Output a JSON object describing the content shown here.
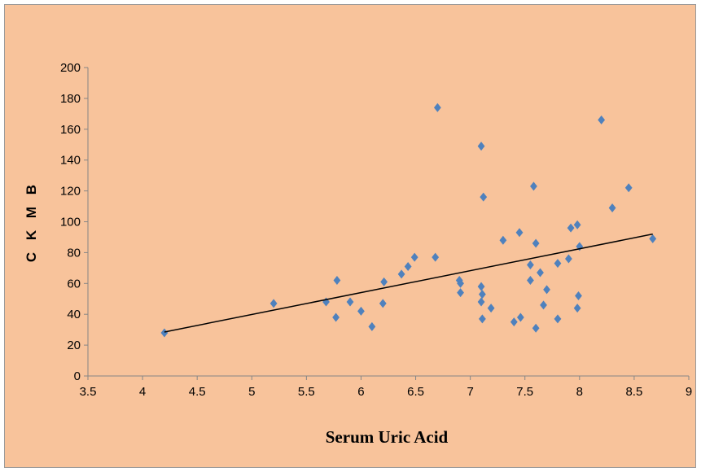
{
  "chart_data": {
    "type": "scatter",
    "title": "",
    "xlabel": "Serum Uric Acid",
    "ylabel": "C K M B",
    "xlim": [
      3.5,
      9
    ],
    "ylim": [
      0,
      200
    ],
    "xticks": [
      "3.5",
      "4",
      "4.5",
      "5",
      "5.5",
      "6",
      "6.5",
      "7",
      "7.5",
      "8",
      "8.5",
      "9"
    ],
    "yticks": [
      "0",
      "20",
      "40",
      "60",
      "80",
      "100",
      "120",
      "140",
      "160",
      "180",
      "200"
    ],
    "grid": false,
    "legend": "none",
    "marker": "diamond",
    "marker_color": "#4f81bd",
    "background_color": "#f8c39b",
    "series": [
      {
        "points": [
          [
            4.2,
            28
          ],
          [
            5.2,
            47
          ],
          [
            5.68,
            48
          ],
          [
            5.77,
            38
          ],
          [
            5.78,
            62
          ],
          [
            5.9,
            48
          ],
          [
            6.0,
            42
          ],
          [
            6.1,
            32
          ],
          [
            6.2,
            47
          ],
          [
            6.21,
            61
          ],
          [
            6.37,
            66
          ],
          [
            6.43,
            71
          ],
          [
            6.49,
            77
          ],
          [
            6.68,
            77
          ],
          [
            6.7,
            174
          ],
          [
            6.9,
            62
          ],
          [
            6.91,
            60
          ],
          [
            6.91,
            54
          ],
          [
            7.1,
            149
          ],
          [
            7.12,
            116
          ],
          [
            7.1,
            58
          ],
          [
            7.11,
            53
          ],
          [
            7.1,
            48
          ],
          [
            7.11,
            37
          ],
          [
            7.19,
            44
          ],
          [
            7.3,
            88
          ],
          [
            7.4,
            35
          ],
          [
            7.45,
            93
          ],
          [
            7.46,
            38
          ],
          [
            7.55,
            72
          ],
          [
            7.55,
            62
          ],
          [
            7.58,
            123
          ],
          [
            7.6,
            86
          ],
          [
            7.6,
            31
          ],
          [
            7.64,
            67
          ],
          [
            7.67,
            46
          ],
          [
            7.7,
            56
          ],
          [
            7.8,
            73
          ],
          [
            7.8,
            37
          ],
          [
            7.9,
            76
          ],
          [
            7.92,
            96
          ],
          [
            7.98,
            98
          ],
          [
            7.98,
            44
          ],
          [
            7.99,
            52
          ],
          [
            8.0,
            84
          ],
          [
            8.2,
            166
          ],
          [
            8.3,
            109
          ],
          [
            8.45,
            122
          ],
          [
            8.67,
            89
          ]
        ]
      }
    ],
    "trendline": {
      "x": [
        4.2,
        8.67
      ],
      "y": [
        28.5,
        92
      ]
    }
  }
}
